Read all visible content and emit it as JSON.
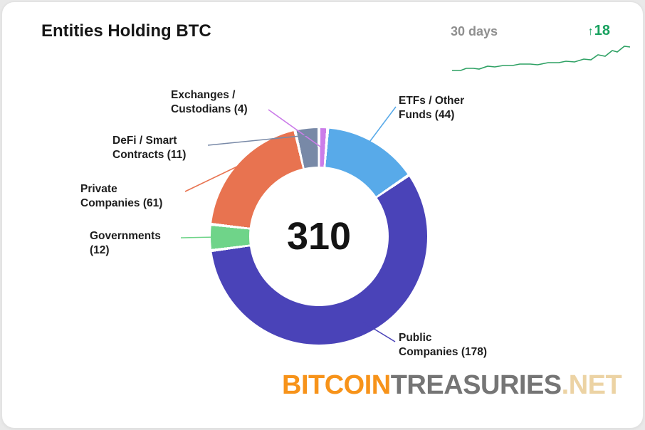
{
  "card": {
    "title": "Entities Holding BTC",
    "period_label": "30 days",
    "change": {
      "arrow": "↑",
      "value": "18",
      "color": "#17a15e"
    },
    "center_total": "310"
  },
  "chart_data": {
    "type": "pie",
    "donut": true,
    "title": "Entities Holding BTC",
    "total": 310,
    "legend_position": "callouts",
    "segments": [
      {
        "label": "Exchanges / Custodians",
        "value": 4,
        "color": "#cb7de9"
      },
      {
        "label": "ETFs / Other Funds",
        "value": 44,
        "color": "#58aae9"
      },
      {
        "label": "Public Companies",
        "value": 178,
        "color": "#4a43b8"
      },
      {
        "label": "Governments",
        "value": 12,
        "color": "#6fd489"
      },
      {
        "label": "Private Companies",
        "value": 61,
        "color": "#e87350"
      },
      {
        "label": "DeFi / Smart Contracts",
        "value": 11,
        "color": "#7889a7"
      }
    ],
    "sparkline": {
      "label": "30 days",
      "change": 18,
      "color": "#2ea164",
      "points": [
        [
          0,
          40
        ],
        [
          12,
          40
        ],
        [
          20,
          37
        ],
        [
          30,
          37
        ],
        [
          38,
          38
        ],
        [
          50,
          34
        ],
        [
          60,
          35
        ],
        [
          72,
          33
        ],
        [
          85,
          33
        ],
        [
          95,
          31
        ],
        [
          110,
          31
        ],
        [
          120,
          32
        ],
        [
          135,
          29
        ],
        [
          150,
          29
        ],
        [
          160,
          27
        ],
        [
          172,
          28
        ],
        [
          185,
          24
        ],
        [
          195,
          25
        ],
        [
          205,
          18
        ],
        [
          215,
          20
        ],
        [
          225,
          12
        ],
        [
          232,
          14
        ],
        [
          242,
          6
        ],
        [
          250,
          7
        ]
      ]
    }
  },
  "callouts": {
    "exchanges": "Exchanges /\nCustodians (4)",
    "etfs": "ETFs / Other\nFunds (44)",
    "defi": "DeFi / Smart\nContracts (11)",
    "private": "Private\nCompanies (61)",
    "governments": "Governments\n(12)",
    "public": "Public\nCompanies (178)"
  },
  "logo": {
    "part1": "BITCOIN",
    "part2": "TREASURIES",
    "part3": ".NET",
    "colors": {
      "part1": "#f7931a",
      "part2": "#757575",
      "part3": "#ecd3a4"
    }
  }
}
